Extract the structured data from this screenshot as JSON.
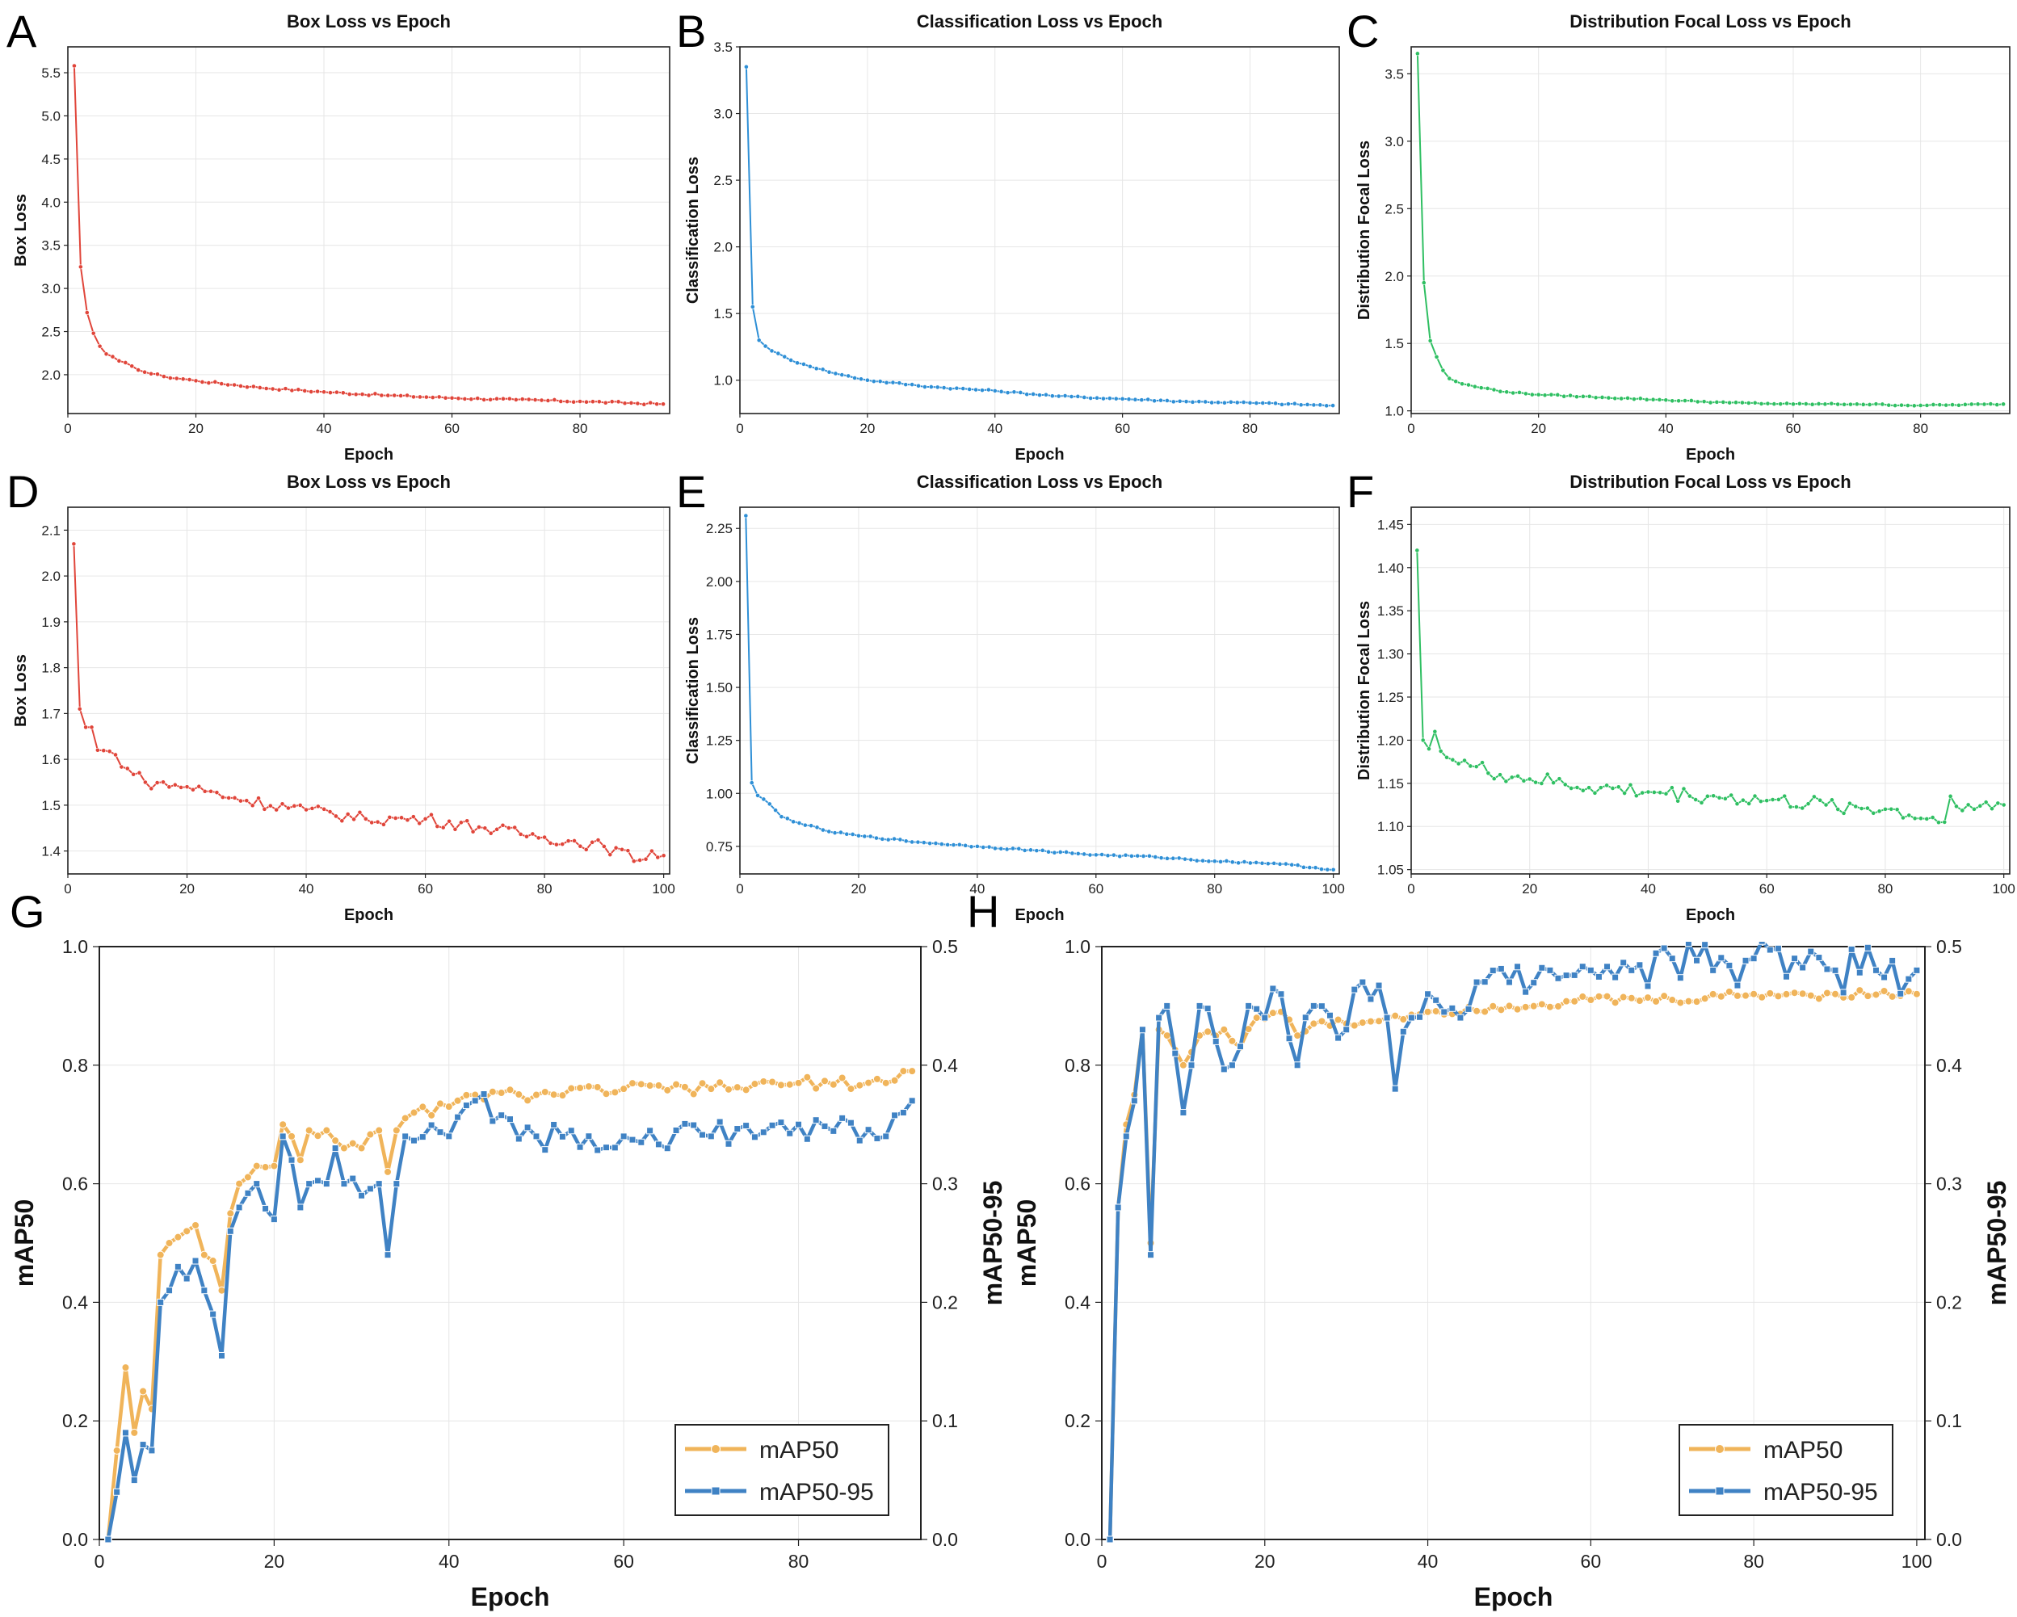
{
  "figure": {
    "panel_labels": [
      "A",
      "B",
      "C",
      "D",
      "E",
      "F",
      "G",
      "H"
    ]
  },
  "chart_data": [
    {
      "id": "A",
      "type": "line",
      "title": "Box Loss vs Epoch",
      "xlabel": "Epoch",
      "ylabel": "Box Loss",
      "color": "#E0453A",
      "xlim": [
        0,
        94
      ],
      "ylim": [
        1.55,
        5.8
      ],
      "xticks": [
        0,
        20,
        40,
        60,
        80
      ],
      "yticks": [
        2.0,
        2.5,
        3.0,
        3.5,
        4.0,
        4.5,
        5.0,
        5.5
      ],
      "n_points": 93,
      "keypoints": [
        [
          1,
          5.58
        ],
        [
          2,
          3.25
        ],
        [
          3,
          2.72
        ],
        [
          4,
          2.48
        ],
        [
          5,
          2.33
        ],
        [
          6,
          2.24
        ],
        [
          8,
          2.16
        ],
        [
          10,
          2.1
        ],
        [
          12,
          2.03
        ],
        [
          15,
          1.98
        ],
        [
          20,
          1.93
        ],
        [
          30,
          1.85
        ],
        [
          40,
          1.8
        ],
        [
          50,
          1.76
        ],
        [
          60,
          1.73
        ],
        [
          70,
          1.71
        ],
        [
          80,
          1.69
        ],
        [
          93,
          1.66
        ]
      ],
      "noise": 0.012
    },
    {
      "id": "B",
      "type": "line",
      "title": "Classification Loss vs Epoch",
      "xlabel": "Epoch",
      "ylabel": "Classification Loss",
      "color": "#2E8FD6",
      "xlim": [
        0,
        94
      ],
      "ylim": [
        0.75,
        3.5
      ],
      "xticks": [
        0,
        20,
        40,
        60,
        80
      ],
      "yticks": [
        1.0,
        1.5,
        2.0,
        2.5,
        3.0,
        3.5
      ],
      "n_points": 93,
      "keypoints": [
        [
          1,
          3.35
        ],
        [
          2,
          1.55
        ],
        [
          3,
          1.3
        ],
        [
          5,
          1.22
        ],
        [
          8,
          1.15
        ],
        [
          10,
          1.12
        ],
        [
          15,
          1.05
        ],
        [
          20,
          1.0
        ],
        [
          30,
          0.95
        ],
        [
          40,
          0.92
        ],
        [
          50,
          0.88
        ],
        [
          60,
          0.86
        ],
        [
          70,
          0.84
        ],
        [
          80,
          0.83
        ],
        [
          93,
          0.81
        ]
      ],
      "noise": 0.006
    },
    {
      "id": "C",
      "type": "line",
      "title": "Distribution Focal Loss vs Epoch",
      "xlabel": "Epoch",
      "ylabel": "Distribution Focal Loss",
      "color": "#2FBF62",
      "xlim": [
        0,
        94
      ],
      "ylim": [
        0.98,
        3.7
      ],
      "xticks": [
        0,
        20,
        40,
        60,
        80
      ],
      "yticks": [
        1.0,
        1.5,
        2.0,
        2.5,
        3.0,
        3.5
      ],
      "n_points": 93,
      "keypoints": [
        [
          1,
          3.65
        ],
        [
          2,
          1.95
        ],
        [
          3,
          1.52
        ],
        [
          4,
          1.4
        ],
        [
          5,
          1.3
        ],
        [
          6,
          1.24
        ],
        [
          8,
          1.2
        ],
        [
          10,
          1.18
        ],
        [
          15,
          1.14
        ],
        [
          20,
          1.12
        ],
        [
          30,
          1.1
        ],
        [
          40,
          1.08
        ],
        [
          50,
          1.06
        ],
        [
          60,
          1.05
        ],
        [
          70,
          1.05
        ],
        [
          80,
          1.04
        ],
        [
          93,
          1.05
        ]
      ],
      "noise": 0.005
    },
    {
      "id": "D",
      "type": "line",
      "title": "Box Loss vs Epoch",
      "xlabel": "Epoch",
      "ylabel": "Box Loss",
      "color": "#E0453A",
      "xlim": [
        0,
        101
      ],
      "ylim": [
        1.35,
        2.15
      ],
      "xticks": [
        0,
        20,
        40,
        60,
        80,
        100
      ],
      "yticks": [
        1.4,
        1.5,
        1.6,
        1.7,
        1.8,
        1.9,
        2.0,
        2.1
      ],
      "n_points": 100,
      "keypoints": [
        [
          1,
          2.07
        ],
        [
          2,
          1.71
        ],
        [
          3,
          1.67
        ],
        [
          4,
          1.67
        ],
        [
          5,
          1.62
        ],
        [
          8,
          1.61
        ],
        [
          10,
          1.58
        ],
        [
          13,
          1.55
        ],
        [
          20,
          1.54
        ],
        [
          30,
          1.51
        ],
        [
          40,
          1.49
        ],
        [
          50,
          1.47
        ],
        [
          60,
          1.47
        ],
        [
          70,
          1.45
        ],
        [
          80,
          1.43
        ],
        [
          90,
          1.41
        ],
        [
          96,
          1.38
        ],
        [
          98,
          1.4
        ],
        [
          100,
          1.39
        ]
      ],
      "noise": 0.013
    },
    {
      "id": "E",
      "type": "line",
      "title": "Classification Loss vs Epoch",
      "xlabel": "Epoch",
      "ylabel": "Classification Loss",
      "color": "#2E8FD6",
      "xlim": [
        0,
        101
      ],
      "ylim": [
        0.62,
        2.35
      ],
      "xticks": [
        0,
        20,
        40,
        60,
        80,
        100
      ],
      "yticks": [
        0.75,
        1.0,
        1.25,
        1.5,
        1.75,
        2.0,
        2.25
      ],
      "n_points": 100,
      "keypoints": [
        [
          1,
          2.31
        ],
        [
          2,
          1.05
        ],
        [
          3,
          0.99
        ],
        [
          5,
          0.95
        ],
        [
          7,
          0.89
        ],
        [
          10,
          0.86
        ],
        [
          15,
          0.82
        ],
        [
          20,
          0.8
        ],
        [
          30,
          0.77
        ],
        [
          40,
          0.75
        ],
        [
          50,
          0.73
        ],
        [
          60,
          0.71
        ],
        [
          70,
          0.7
        ],
        [
          80,
          0.68
        ],
        [
          90,
          0.67
        ],
        [
          100,
          0.64
        ]
      ],
      "noise": 0.004
    },
    {
      "id": "F",
      "type": "line",
      "title": "Distribution Focal Loss vs Epoch",
      "xlabel": "Epoch",
      "ylabel": "Distribution Focal Loss",
      "color": "#2FBF62",
      "xlim": [
        0,
        101
      ],
      "ylim": [
        1.045,
        1.47
      ],
      "xticks": [
        0,
        20,
        40,
        60,
        80,
        100
      ],
      "yticks": [
        1.05,
        1.1,
        1.15,
        1.2,
        1.25,
        1.3,
        1.35,
        1.4,
        1.45
      ],
      "n_points": 100,
      "keypoints": [
        [
          1,
          1.42
        ],
        [
          2,
          1.2
        ],
        [
          3,
          1.19
        ],
        [
          4,
          1.21
        ],
        [
          6,
          1.18
        ],
        [
          10,
          1.17
        ],
        [
          15,
          1.16
        ],
        [
          20,
          1.155
        ],
        [
          30,
          1.145
        ],
        [
          40,
          1.14
        ],
        [
          50,
          1.135
        ],
        [
          60,
          1.13
        ],
        [
          70,
          1.125
        ],
        [
          80,
          1.12
        ],
        [
          90,
          1.105
        ],
        [
          91,
          1.135
        ],
        [
          95,
          1.12
        ],
        [
          100,
          1.125
        ]
      ],
      "noise": 0.009
    },
    {
      "id": "G",
      "type": "line-dual-axis",
      "xlabel": "Epoch",
      "ylabel": "mAP50",
      "ylabel_right": "mAP50-95",
      "xlim": [
        0,
        94
      ],
      "ylim": [
        0,
        1.0
      ],
      "ylim_right": [
        0,
        0.5
      ],
      "xticks": [
        0,
        20,
        40,
        60,
        80
      ],
      "yticks": [
        0.0,
        0.2,
        0.4,
        0.6,
        0.8,
        1.0
      ],
      "yticks_right": [
        0.0,
        0.1,
        0.2,
        0.3,
        0.4,
        0.5
      ],
      "legend": "lower-right",
      "series": [
        {
          "name": "mAP50",
          "axis": "left",
          "color": "#F0B45A",
          "n_points": 93,
          "keypoints": [
            [
              1,
              0.0
            ],
            [
              2,
              0.15
            ],
            [
              3,
              0.29
            ],
            [
              4,
              0.18
            ],
            [
              5,
              0.25
            ],
            [
              6,
              0.22
            ],
            [
              7,
              0.48
            ],
            [
              8,
              0.5
            ],
            [
              9,
              0.51
            ],
            [
              10,
              0.52
            ],
            [
              11,
              0.53
            ],
            [
              12,
              0.48
            ],
            [
              13,
              0.47
            ],
            [
              14,
              0.42
            ],
            [
              15,
              0.55
            ],
            [
              16,
              0.6
            ],
            [
              18,
              0.63
            ],
            [
              20,
              0.63
            ],
            [
              21,
              0.7
            ],
            [
              22,
              0.68
            ],
            [
              23,
              0.64
            ],
            [
              24,
              0.69
            ],
            [
              26,
              0.69
            ],
            [
              28,
              0.66
            ],
            [
              30,
              0.66
            ],
            [
              32,
              0.69
            ],
            [
              33,
              0.62
            ],
            [
              34,
              0.69
            ],
            [
              36,
              0.72
            ],
            [
              40,
              0.73
            ],
            [
              43,
              0.75
            ],
            [
              50,
              0.75
            ],
            [
              60,
              0.76
            ],
            [
              70,
              0.76
            ],
            [
              80,
              0.77
            ],
            [
              90,
              0.77
            ],
            [
              92,
              0.79
            ],
            [
              93,
              0.79
            ]
          ],
          "noise": 0.01
        },
        {
          "name": "mAP50-95",
          "axis": "right",
          "color": "#3F82C4",
          "n_points": 93,
          "keypoints": [
            [
              1,
              0.0
            ],
            [
              2,
              0.04
            ],
            [
              3,
              0.09
            ],
            [
              4,
              0.05
            ],
            [
              5,
              0.08
            ],
            [
              6,
              0.075
            ],
            [
              7,
              0.2
            ],
            [
              8,
              0.21
            ],
            [
              9,
              0.23
            ],
            [
              10,
              0.22
            ],
            [
              11,
              0.235
            ],
            [
              12,
              0.21
            ],
            [
              13,
              0.19
            ],
            [
              14,
              0.155
            ],
            [
              15,
              0.26
            ],
            [
              16,
              0.28
            ],
            [
              18,
              0.3
            ],
            [
              20,
              0.27
            ],
            [
              21,
              0.34
            ],
            [
              22,
              0.32
            ],
            [
              23,
              0.28
            ],
            [
              24,
              0.3
            ],
            [
              26,
              0.3
            ],
            [
              27,
              0.33
            ],
            [
              28,
              0.3
            ],
            [
              30,
              0.29
            ],
            [
              32,
              0.3
            ],
            [
              33,
              0.24
            ],
            [
              34,
              0.3
            ],
            [
              35,
              0.34
            ],
            [
              40,
              0.34
            ],
            [
              43,
              0.37
            ],
            [
              50,
              0.34
            ],
            [
              60,
              0.34
            ],
            [
              70,
              0.34
            ],
            [
              80,
              0.35
            ],
            [
              90,
              0.34
            ],
            [
              92,
              0.36
            ],
            [
              93,
              0.37
            ]
          ],
          "noise": 0.012
        }
      ]
    },
    {
      "id": "H",
      "type": "line-dual-axis",
      "xlabel": "Epoch",
      "ylabel": "mAP50",
      "ylabel_right": "mAP50-95",
      "xlim": [
        0,
        101
      ],
      "ylim": [
        0,
        1.0
      ],
      "ylim_right": [
        0,
        0.5
      ],
      "xticks": [
        0,
        20,
        40,
        60,
        80,
        100
      ],
      "yticks": [
        0.0,
        0.2,
        0.4,
        0.6,
        0.8,
        1.0
      ],
      "yticks_right": [
        0.0,
        0.1,
        0.2,
        0.3,
        0.4,
        0.5
      ],
      "legend": "lower-right",
      "series": [
        {
          "name": "mAP50",
          "axis": "left",
          "color": "#F0B45A",
          "n_points": 100,
          "keypoints": [
            [
              1,
              0.0
            ],
            [
              2,
              0.56
            ],
            [
              3,
              0.7
            ],
            [
              4,
              0.75
            ],
            [
              5,
              0.86
            ],
            [
              6,
              0.5
            ],
            [
              7,
              0.86
            ],
            [
              8,
              0.85
            ],
            [
              10,
              0.8
            ],
            [
              12,
              0.85
            ],
            [
              15,
              0.86
            ],
            [
              17,
              0.83
            ],
            [
              19,
              0.88
            ],
            [
              22,
              0.89
            ],
            [
              24,
              0.85
            ],
            [
              26,
              0.87
            ],
            [
              30,
              0.87
            ],
            [
              35,
              0.88
            ],
            [
              40,
              0.89
            ],
            [
              50,
              0.9
            ],
            [
              60,
              0.91
            ],
            [
              70,
              0.91
            ],
            [
              80,
              0.92
            ],
            [
              90,
              0.92
            ],
            [
              100,
              0.92
            ]
          ],
          "noise": 0.008
        },
        {
          "name": "mAP50-95",
          "axis": "right",
          "color": "#3F82C4",
          "n_points": 100,
          "keypoints": [
            [
              1,
              0.0
            ],
            [
              2,
              0.28
            ],
            [
              3,
              0.34
            ],
            [
              4,
              0.37
            ],
            [
              5,
              0.43
            ],
            [
              6,
              0.24
            ],
            [
              7,
              0.44
            ],
            [
              8,
              0.45
            ],
            [
              9,
              0.41
            ],
            [
              10,
              0.36
            ],
            [
              11,
              0.4
            ],
            [
              12,
              0.45
            ],
            [
              14,
              0.42
            ],
            [
              16,
              0.4
            ],
            [
              18,
              0.45
            ],
            [
              20,
              0.44
            ],
            [
              22,
              0.46
            ],
            [
              24,
              0.4
            ],
            [
              26,
              0.45
            ],
            [
              30,
              0.43
            ],
            [
              32,
              0.47
            ],
            [
              35,
              0.44
            ],
            [
              36,
              0.38
            ],
            [
              38,
              0.44
            ],
            [
              40,
              0.46
            ],
            [
              44,
              0.44
            ],
            [
              46,
              0.47
            ],
            [
              50,
              0.47
            ],
            [
              55,
              0.48
            ],
            [
              60,
              0.48
            ],
            [
              65,
              0.48
            ],
            [
              70,
              0.49
            ],
            [
              75,
              0.48
            ],
            [
              80,
              0.49
            ],
            [
              85,
              0.49
            ],
            [
              90,
              0.48
            ],
            [
              95,
              0.48
            ],
            [
              100,
              0.48
            ]
          ],
          "noise": 0.02
        }
      ]
    }
  ]
}
